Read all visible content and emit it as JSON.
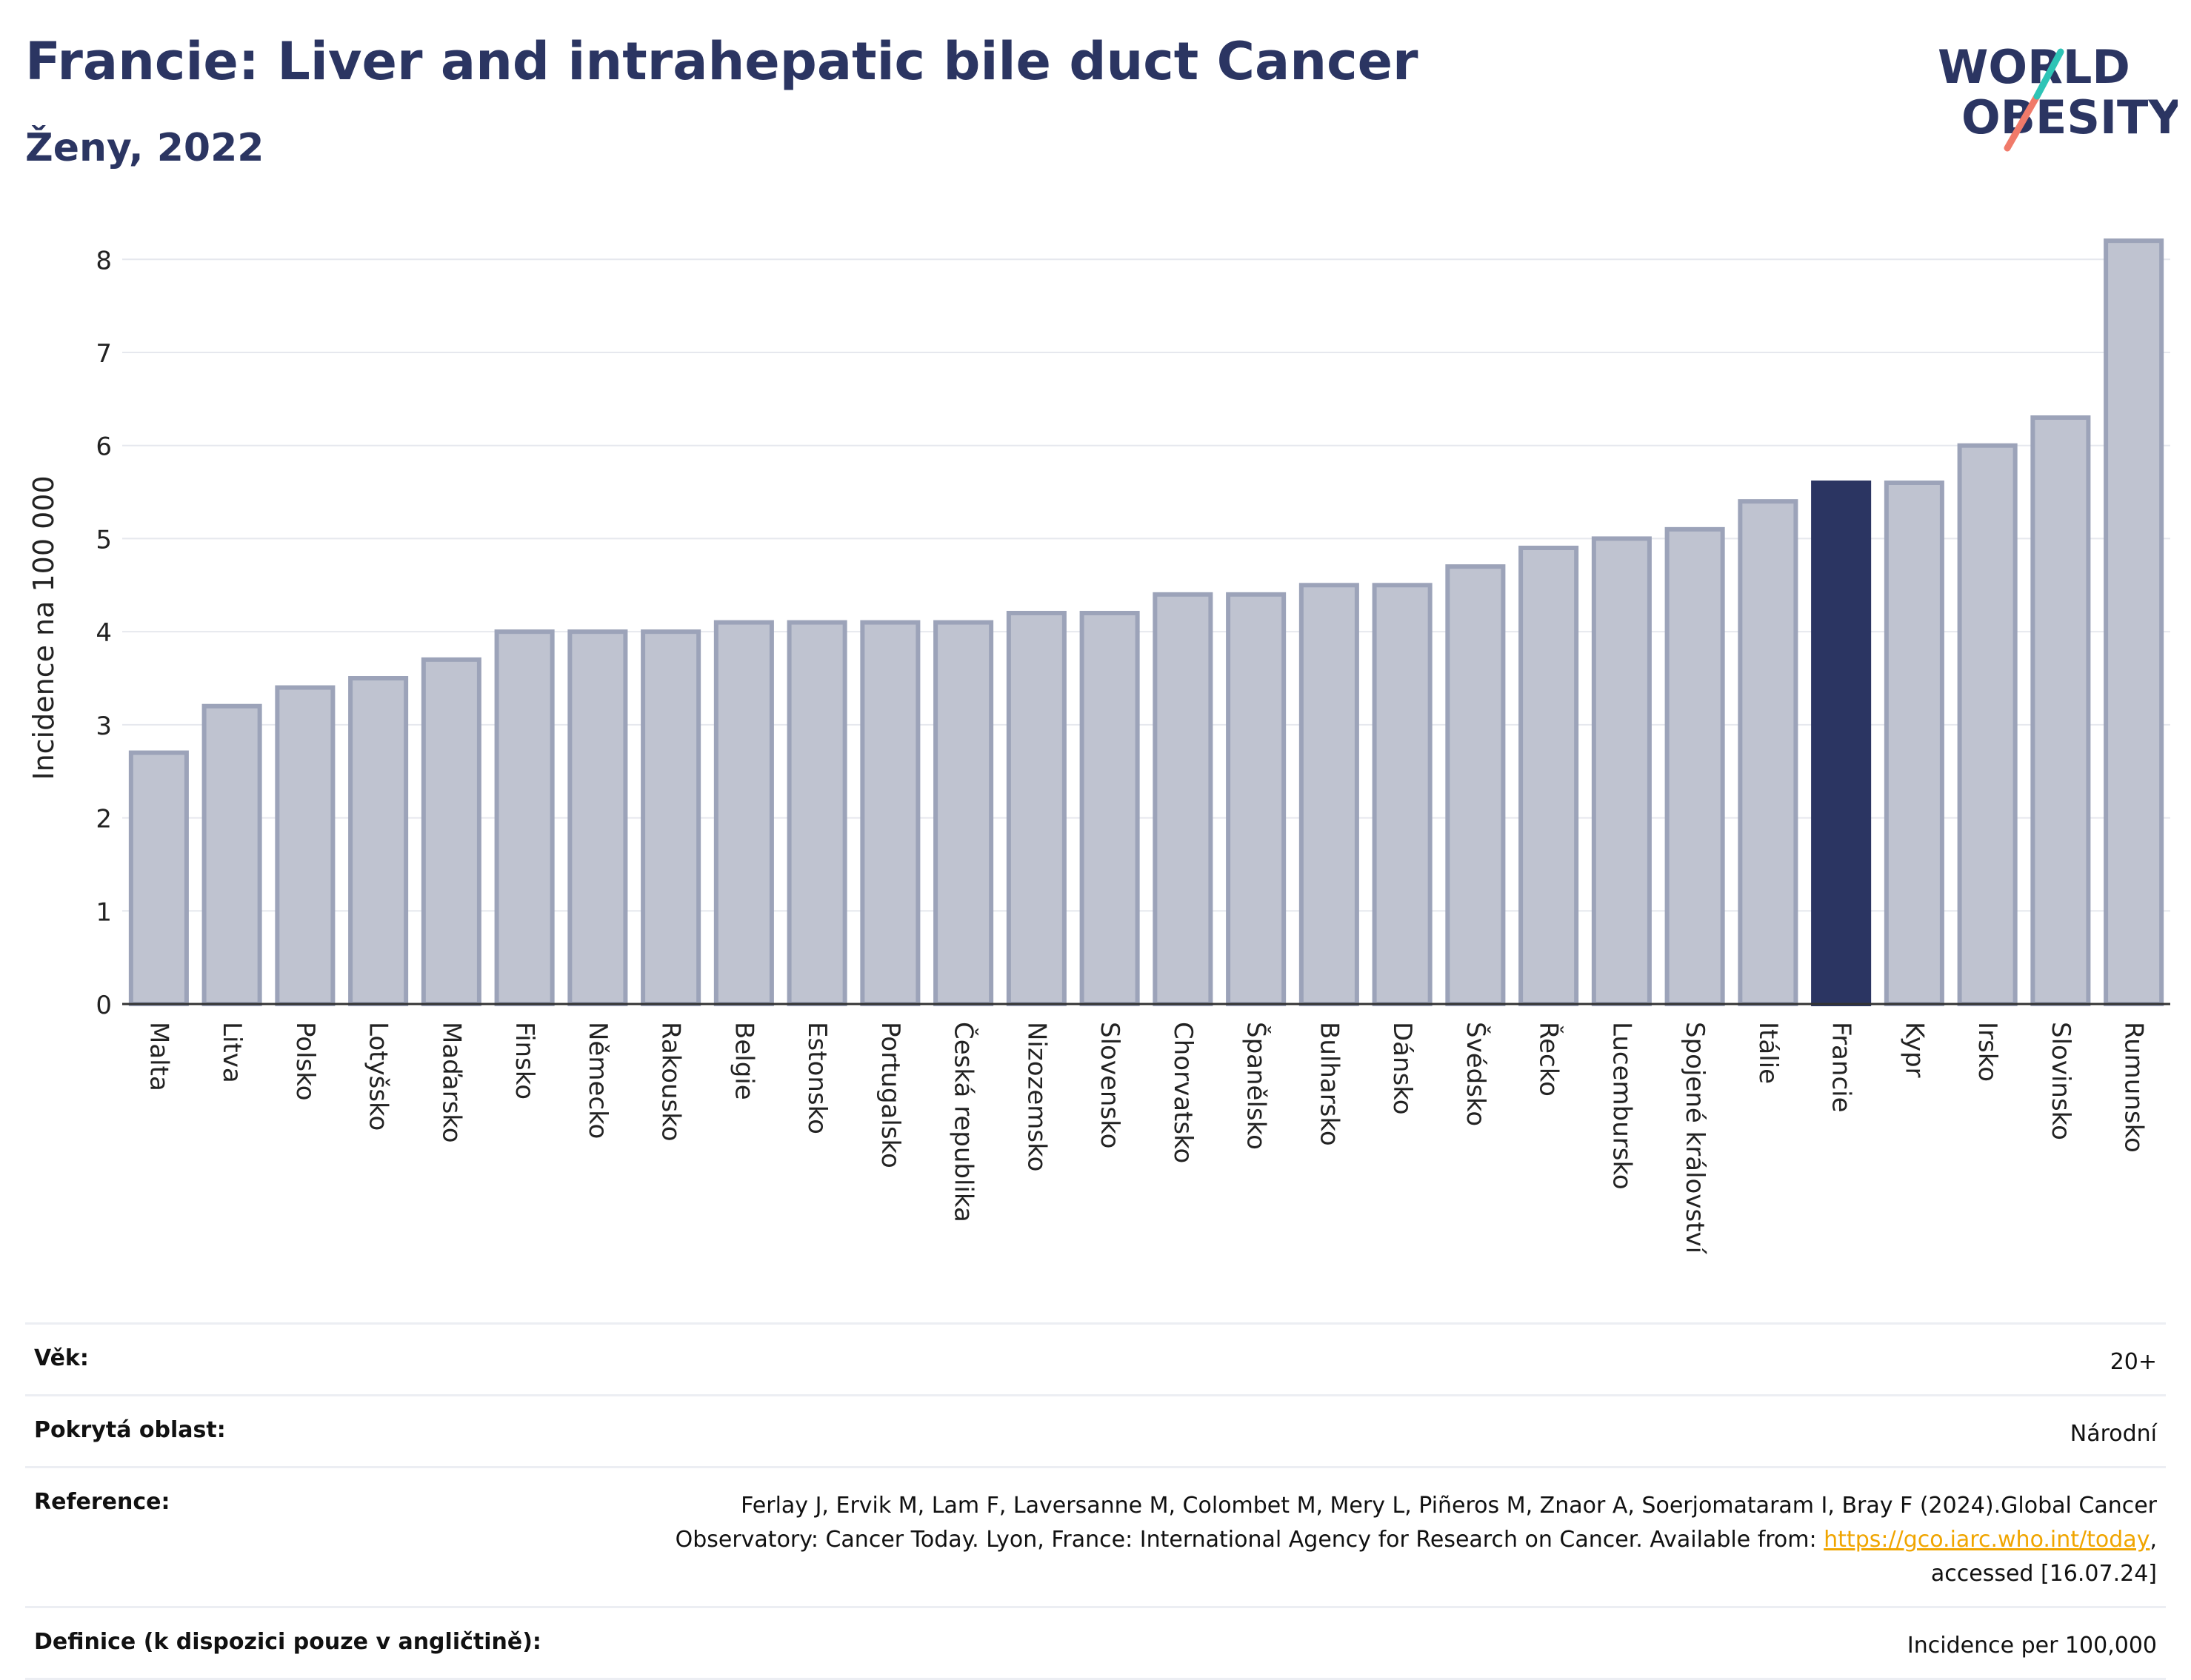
{
  "header": {
    "title": "Francie: Liver and intrahepatic bile duct Cancer",
    "subtitle": "Ženy, 2022"
  },
  "logo": {
    "line1": "WORLD",
    "line2": "OBESITY"
  },
  "colors": {
    "bar": "#bfc3d0",
    "bar_stroke": "#9ca3b9",
    "highlight": "#2b3562",
    "grid": "#e6e8ee",
    "logo_teal": "#2ec4b6",
    "logo_coral": "#f07a6a"
  },
  "chart_data": {
    "type": "bar",
    "title": "Francie: Liver and intrahepatic bile duct Cancer",
    "subtitle": "Ženy, 2022",
    "ylabel": "Incidence na 100 000",
    "xlabel": "",
    "ylim": [
      0,
      8.4
    ],
    "yticks": [
      0,
      1,
      2,
      3,
      4,
      5,
      6,
      7,
      8
    ],
    "grid": true,
    "highlight": "Francie",
    "categories": [
      "Malta",
      "Litva",
      "Polsko",
      "Lotyšsko",
      "Maďarsko",
      "Finsko",
      "Německo",
      "Rakousko",
      "Belgie",
      "Estonsko",
      "Portugalsko",
      "Česká republika",
      "Nizozemsko",
      "Slovensko",
      "Chorvatsko",
      "Španělsko",
      "Bulharsko",
      "Dánsko",
      "Švédsko",
      "Řecko",
      "Lucembursko",
      "Spojené království",
      "Itálie",
      "Francie",
      "Kypr",
      "Irsko",
      "Slovinsko",
      "Rumunsko"
    ],
    "values": [
      2.7,
      3.2,
      3.4,
      3.5,
      3.7,
      4.0,
      4.0,
      4.0,
      4.1,
      4.1,
      4.1,
      4.1,
      4.2,
      4.2,
      4.4,
      4.4,
      4.5,
      4.5,
      4.7,
      4.9,
      5.0,
      5.1,
      5.4,
      5.6,
      5.6,
      6.0,
      6.3,
      8.2
    ]
  },
  "info": {
    "age_label": "Věk:",
    "age_value": "20+",
    "area_label": "Pokrytá oblast:",
    "area_value": "Národní",
    "ref_label": "Reference:",
    "ref_text_1": "Ferlay J, Ervik M, Lam F, Laversanne M, Colombet M, Mery L, Piñeros M, Znaor A, Soerjomataram I, Bray F (2024).Global Cancer Observatory: Cancer Today. Lyon, France: International Agency for Research on Cancer. Available from: ",
    "ref_link": "https://gco.iarc.who.int/today",
    "ref_text_2": ", accessed [16.07.24]",
    "def_label": "Definice (k dispozici pouze v angličtině):",
    "def_value": "Incidence per 100,000"
  }
}
